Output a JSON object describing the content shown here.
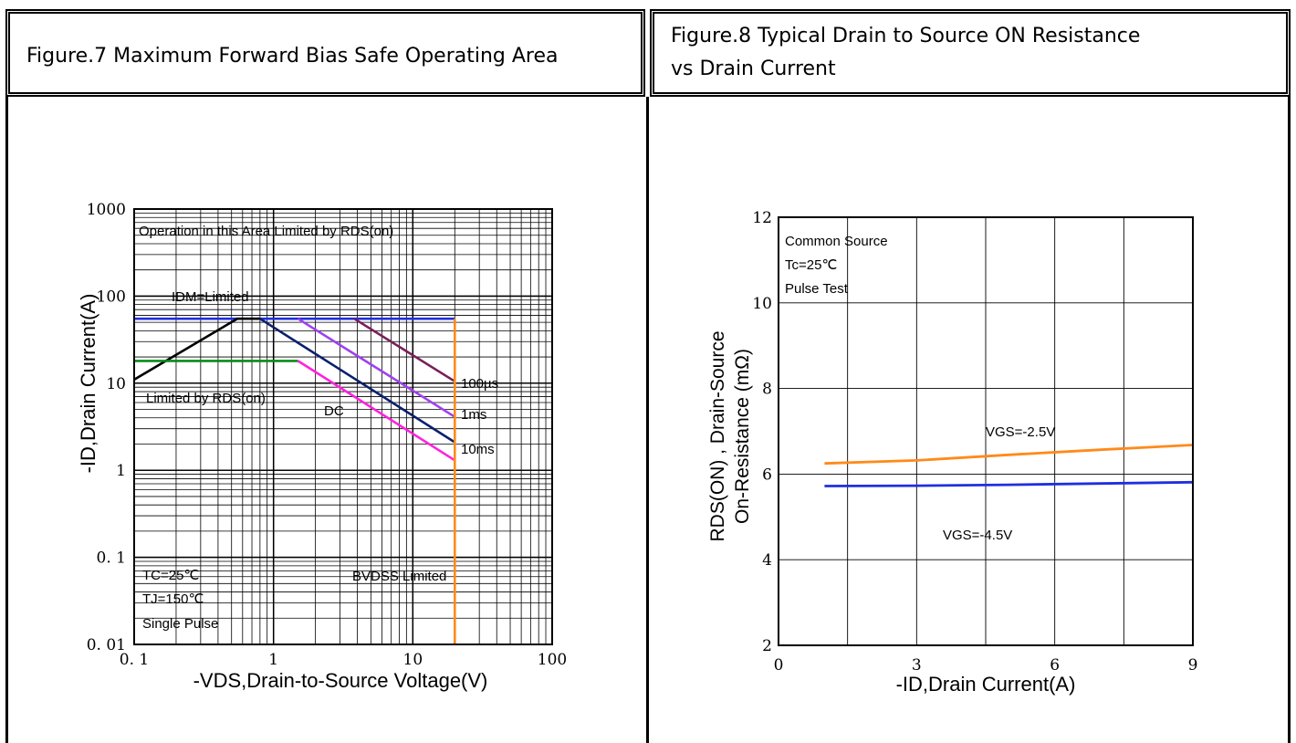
{
  "headers": {
    "fig7": "Figure.7 Maximum Forward Bias Safe Operating Area",
    "fig8_line1": "Figure.8 Typical Drain to Source ON Resistance",
    "fig8_line2": "vs Drain Current"
  },
  "chart_data": [
    {
      "type": "line",
      "xscale": "log",
      "yscale": "log",
      "xlim": [
        0.1,
        100
      ],
      "ylim": [
        0.01,
        1000
      ],
      "xticks": [
        "0. 1",
        "1",
        "10",
        "100"
      ],
      "yticks": [
        "0. 01",
        "0. 1",
        "1",
        "10",
        "100",
        "1000"
      ],
      "xlabel": "-VDS,Drain-to-Source Voltage(V)",
      "ylabel": "-ID,Drain Current(A)",
      "grid": true,
      "series": [
        {
          "name": "IDM=Limited",
          "color": "#1f2fe0",
          "points": [
            [
              0.1,
              55
            ],
            [
              20,
              55
            ]
          ]
        },
        {
          "name": "Limited by RDS(on)",
          "color": "#000000",
          "points": [
            [
              0.1,
              11
            ],
            [
              0.55,
              55
            ],
            [
              0.8,
              55
            ]
          ]
        },
        {
          "name": "DC",
          "color": "#0a8a1a",
          "points": [
            [
              0.1,
              18
            ],
            [
              1.5,
              18
            ]
          ]
        },
        {
          "name": "10ms",
          "color": "#ff22dd",
          "points": [
            [
              1.5,
              18
            ],
            [
              20,
              1.3
            ]
          ]
        },
        {
          "name": "DC_line",
          "color": "#0b1f6e",
          "points": [
            [
              0.8,
              55
            ],
            [
              20,
              2.1
            ]
          ]
        },
        {
          "name": "1ms",
          "color": "#a040f0",
          "points": [
            [
              1.5,
              55
            ],
            [
              20,
              4.1
            ]
          ]
        },
        {
          "name": "100µs",
          "color": "#7a1f5a",
          "points": [
            [
              3.8,
              55
            ],
            [
              20,
              10.5
            ]
          ]
        },
        {
          "name": "BVDSS Limited",
          "color": "#ff8a1a",
          "points": [
            [
              20,
              55
            ],
            [
              20,
              0.01
            ]
          ]
        }
      ],
      "annotations": {
        "operation": "Operation in this Area Limited by RDS(on)",
        "idm": "IDM=Limited",
        "rds": "Limited by RDS(on)",
        "dc": "DC",
        "t100us": "100µs",
        "t1ms": "1ms",
        "t10ms": "10ms",
        "bvdss": "BVDSS Limited",
        "tc": "TC=25℃",
        "tj": "TJ=150℃",
        "pulse": "Single Pulse"
      }
    },
    {
      "type": "line",
      "xlim": [
        0,
        9
      ],
      "ylim": [
        2,
        12
      ],
      "xticks": [
        "0",
        "3",
        "6",
        "9"
      ],
      "yticks": [
        "2",
        "4",
        "6",
        "8",
        "10",
        "12"
      ],
      "xlabel": "-ID,Drain Current(A)",
      "ylabel_line1": "RDS(ON) , Drain-Source",
      "ylabel_line2": "On-Resistance (mΩ)",
      "grid": true,
      "series": [
        {
          "name": "VGS=-2.5V",
          "color": "#ff8a1a",
          "points": [
            [
              1,
              6.25
            ],
            [
              3,
              6.32
            ],
            [
              5,
              6.45
            ],
            [
              7,
              6.57
            ],
            [
              9,
              6.68
            ]
          ]
        },
        {
          "name": "VGS=-4.5V",
          "color": "#1f2fe0",
          "points": [
            [
              1,
              5.72
            ],
            [
              3,
              5.73
            ],
            [
              5,
              5.75
            ],
            [
              7,
              5.78
            ],
            [
              9,
              5.81
            ]
          ]
        }
      ],
      "annotations": {
        "l1": "Common Source",
        "l2": "Tc=25℃",
        "l3": "Pulse Test",
        "vgs25": "VGS=-2.5V",
        "vgs45": "VGS=-4.5V"
      }
    }
  ]
}
